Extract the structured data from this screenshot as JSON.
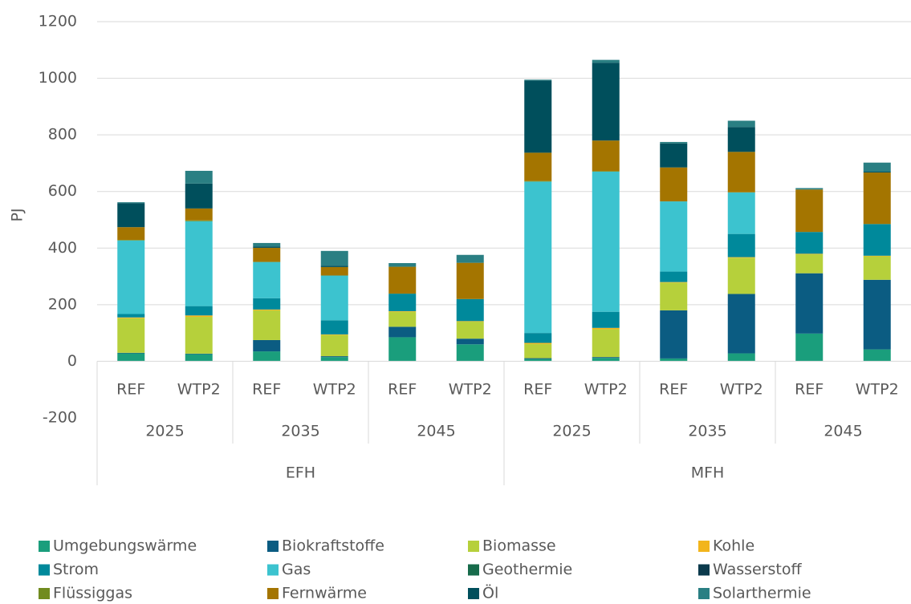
{
  "chart_data": {
    "type": "stacked_bar",
    "y_label": "PJ",
    "ylim": [
      -200,
      1200
    ],
    "yticks": [
      -200,
      0,
      200,
      400,
      600,
      800,
      1000,
      1200
    ],
    "grid": true,
    "categories": [
      "REF",
      "WTP2",
      "REF",
      "WTP2",
      "REF",
      "WTP2",
      "REF",
      "WTP2",
      "REF",
      "WTP2",
      "REF",
      "WTP2"
    ],
    "years": [
      "2025",
      "2035",
      "2045",
      "2025",
      "2035",
      "2045"
    ],
    "building_types": [
      "EFH",
      "MFH"
    ],
    "legend_columns": 4,
    "series": [
      {
        "name": "Umgebungswärme",
        "color": "#1a9e7c",
        "values": [
          28,
          25,
          35,
          15,
          85,
          60,
          8,
          12,
          10,
          28,
          98,
          42
        ]
      },
      {
        "name": "Biokraftstoffe",
        "color": "#0b5c82",
        "values": [
          2,
          2,
          40,
          3,
          37,
          20,
          3,
          3,
          170,
          210,
          213,
          246
        ]
      },
      {
        "name": "Biomasse",
        "color": "#b6d03b",
        "values": [
          122,
          130,
          105,
          75,
          53,
          60,
          50,
          98,
          98,
          128,
          67,
          83
        ]
      },
      {
        "name": "Kohle",
        "color": "#f2b51c",
        "values": [
          3,
          5,
          3,
          2,
          2,
          2,
          4,
          5,
          2,
          2,
          2,
          2
        ]
      },
      {
        "name": "Strom",
        "color": "#00899b",
        "values": [
          12,
          33,
          40,
          50,
          62,
          78,
          35,
          57,
          37,
          82,
          77,
          112
        ]
      },
      {
        "name": "Gas",
        "color": "#3cc3cf",
        "values": [
          260,
          300,
          128,
          158,
          0,
          0,
          535,
          495,
          248,
          147,
          0,
          0
        ]
      },
      {
        "name": "Geothermie",
        "color": "#176b4b",
        "values": [
          0,
          0,
          0,
          0,
          0,
          0,
          0,
          0,
          0,
          0,
          0,
          0
        ]
      },
      {
        "name": "Wasserstoff",
        "color": "#0b3a4c",
        "values": [
          0,
          0,
          0,
          0,
          0,
          0,
          0,
          0,
          0,
          0,
          0,
          0
        ]
      },
      {
        "name": "Flüssiggas",
        "color": "#718b1f",
        "values": [
          2,
          3,
          0,
          0,
          0,
          0,
          2,
          2,
          0,
          0,
          0,
          0
        ]
      },
      {
        "name": "Fernwärme",
        "color": "#a47500",
        "values": [
          45,
          42,
          50,
          30,
          95,
          128,
          100,
          108,
          120,
          143,
          150,
          182
        ]
      },
      {
        "name": "Öl",
        "color": "#004f5c",
        "values": [
          85,
          88,
          5,
          5,
          0,
          0,
          255,
          275,
          85,
          88,
          0,
          3
        ]
      },
      {
        "name": "Solarthermie",
        "color": "#2a7f83",
        "values": [
          3,
          45,
          12,
          52,
          13,
          28,
          3,
          10,
          5,
          22,
          5,
          32
        ]
      }
    ]
  }
}
